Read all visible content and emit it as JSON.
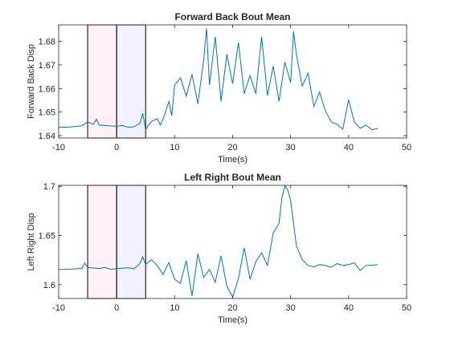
{
  "chart_data": [
    {
      "type": "line",
      "title": "Forward Back Bout Mean",
      "xlabel": "Time(s)",
      "ylabel": "Forward Back Disp",
      "xlim": [
        -10,
        50
      ],
      "ylim": [
        1.639,
        1.687
      ],
      "xticks": [
        -10,
        0,
        10,
        20,
        30,
        40,
        50
      ],
      "yticks": [
        1.64,
        1.65,
        1.66,
        1.67,
        1.68
      ],
      "ytick_labels": [
        "1.64",
        "1.65",
        "1.66",
        "1.67",
        "1.68"
      ],
      "grid": false,
      "shaded_regions": [
        {
          "x": [
            -5,
            0
          ],
          "color": "#ffe0e4"
        },
        {
          "x": [
            0,
            5
          ],
          "color": "#e0e0ff"
        }
      ],
      "series": [
        {
          "color": "#0072bd",
          "x": [
            -10,
            -8,
            -6,
            -5,
            -4,
            -3.5,
            -3,
            -2,
            -1,
            0,
            1,
            2,
            3,
            4,
            4.5,
            5,
            5.5,
            6,
            7,
            7.5,
            8,
            9,
            9.5,
            10,
            11,
            12,
            13,
            14,
            15,
            15.5,
            16,
            17,
            18,
            19,
            20,
            21,
            22,
            23,
            24,
            25,
            26,
            27,
            28,
            29,
            30,
            30.5,
            31,
            32,
            33,
            34,
            35,
            36,
            37,
            38,
            39,
            40,
            41,
            42,
            43,
            44,
            45
          ],
          "values": [
            1.6435,
            1.6437,
            1.6442,
            1.6458,
            1.6448,
            1.647,
            1.6445,
            1.6443,
            1.6441,
            1.644,
            1.6443,
            1.6435,
            1.6438,
            1.6452,
            1.6495,
            1.6425,
            1.6445,
            1.646,
            1.6472,
            1.6445,
            1.647,
            1.6545,
            1.6485,
            1.6615,
            1.6645,
            1.6568,
            1.666,
            1.6535,
            1.672,
            1.6855,
            1.6615,
            1.682,
            1.6545,
            1.6745,
            1.662,
            1.6795,
            1.6578,
            1.6655,
            1.6578,
            1.682,
            1.657,
            1.6695,
            1.6545,
            1.6712,
            1.6625,
            1.6842,
            1.6745,
            1.661,
            1.6665,
            1.6525,
            1.6585,
            1.6505,
            1.6458,
            1.6448,
            1.6428,
            1.6552,
            1.6458,
            1.6431,
            1.6445,
            1.6425,
            1.6431
          ]
        }
      ]
    },
    {
      "type": "line",
      "title": "Left Right Bout Mean",
      "xlabel": "Time(s)",
      "ylabel": "Left Right Disp",
      "xlim": [
        -10,
        50
      ],
      "ylim": [
        1.586,
        1.701
      ],
      "xticks": [
        -10,
        0,
        10,
        20,
        30,
        40,
        50
      ],
      "yticks": [
        1.6,
        1.65,
        1.7
      ],
      "ytick_labels": [
        "1.6",
        "1.65",
        "1.7"
      ],
      "grid": false,
      "shaded_regions": [
        {
          "x": [
            -5,
            0
          ],
          "color": "#ffe0e4"
        },
        {
          "x": [
            0,
            5
          ],
          "color": "#e0e0ff"
        }
      ],
      "series": [
        {
          "color": "#0072bd",
          "x": [
            -10,
            -8,
            -6,
            -5.5,
            -5,
            -4,
            -3,
            -2,
            -1,
            0,
            1,
            2,
            3,
            4,
            4.5,
            5,
            6,
            7,
            8,
            9,
            10,
            11,
            12,
            13,
            14,
            15,
            16,
            17,
            18,
            19,
            20,
            21,
            22,
            23,
            24,
            25,
            26,
            27,
            28,
            28.5,
            29,
            29.5,
            30,
            31,
            32,
            33,
            34,
            35,
            36,
            37,
            38,
            39,
            40,
            41,
            42,
            43,
            44,
            45
          ],
          "values": [
            1.6155,
            1.6158,
            1.6166,
            1.622,
            1.6175,
            1.617,
            1.6165,
            1.6175,
            1.6155,
            1.6165,
            1.6168,
            1.6172,
            1.6162,
            1.6215,
            1.6285,
            1.6205,
            1.6255,
            1.6195,
            1.6105,
            1.6225,
            1.6055,
            1.6015,
            1.6245,
            1.5885,
            1.6315,
            1.6075,
            1.6155,
            1.6025,
            1.6295,
            1.5985,
            1.5875,
            1.6065,
            1.6375,
            1.6055,
            1.6235,
            1.6325,
            1.6195,
            1.6525,
            1.6625,
            1.6885,
            1.7005,
            1.6965,
            1.6855,
            1.6395,
            1.6255,
            1.6195,
            1.6182,
            1.6205,
            1.6195,
            1.6178,
            1.6215,
            1.6195,
            1.6205,
            1.6222,
            1.6145,
            1.6195,
            1.6198,
            1.6205
          ]
        }
      ]
    }
  ]
}
